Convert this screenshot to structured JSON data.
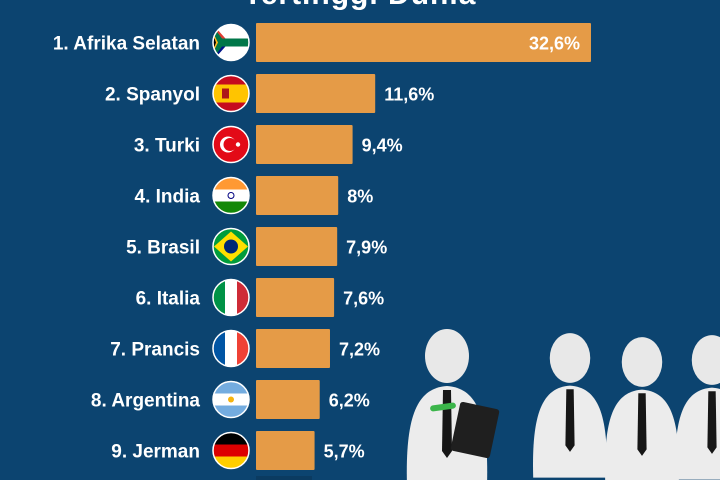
{
  "title_fragment": "Tertinggi Dunia",
  "colors": {
    "background": "#0c4470",
    "bar": "#e59b47",
    "text": "#ffffff"
  },
  "chart_data": {
    "type": "bar",
    "orientation": "horizontal",
    "categories": [
      "1. Afrika Selatan",
      "2. Spanyol",
      "3. Turki",
      "4. India",
      "5. Brasil",
      "6. Italia",
      "7. Prancis",
      "8. Argentina",
      "9. Jerman"
    ],
    "values": [
      32.6,
      11.6,
      9.4,
      8,
      7.9,
      7.6,
      7.2,
      6.2,
      5.7
    ],
    "value_labels": [
      "32,6%",
      "11,6%",
      "9,4%",
      "8%",
      "7,9%",
      "7,6%",
      "7,2%",
      "6,2%",
      "5,7%"
    ],
    "flags": [
      "south-africa-flag",
      "spain-flag",
      "turkey-flag",
      "india-flag",
      "brazil-flag",
      "italy-flag",
      "france-flag",
      "argentina-flag",
      "germany-flag"
    ],
    "xlim": [
      0,
      32.6
    ],
    "grid": false,
    "legend": "none"
  }
}
